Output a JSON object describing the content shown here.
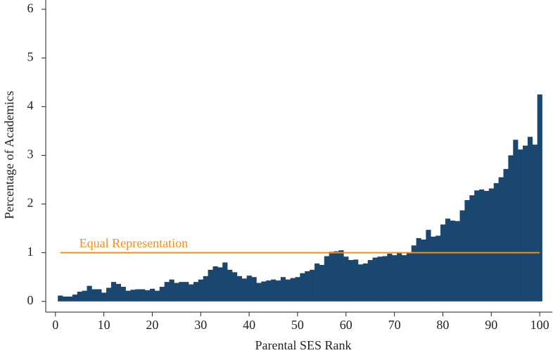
{
  "chart_data": {
    "type": "bar",
    "xlabel": "Parental SES Rank",
    "ylabel": "Percentage of Academics",
    "color": "#1a476f",
    "x": [
      1,
      2,
      3,
      4,
      5,
      6,
      7,
      8,
      9,
      10,
      11,
      12,
      13,
      14,
      15,
      16,
      17,
      18,
      19,
      20,
      21,
      22,
      23,
      24,
      25,
      26,
      27,
      28,
      29,
      30,
      31,
      32,
      33,
      34,
      35,
      36,
      37,
      38,
      39,
      40,
      41,
      42,
      43,
      44,
      45,
      46,
      47,
      48,
      49,
      50,
      51,
      52,
      53,
      54,
      55,
      56,
      57,
      58,
      59,
      60,
      61,
      62,
      63,
      64,
      65,
      66,
      67,
      68,
      69,
      70,
      71,
      72,
      73,
      74,
      75,
      76,
      77,
      78,
      79,
      80,
      81,
      82,
      83,
      84,
      85,
      86,
      87,
      88,
      89,
      90,
      91,
      92,
      93,
      94,
      95,
      96,
      97,
      98,
      99,
      100
    ],
    "values": [
      0.12,
      0.1,
      0.1,
      0.14,
      0.2,
      0.22,
      0.32,
      0.25,
      0.25,
      0.18,
      0.28,
      0.4,
      0.36,
      0.3,
      0.22,
      0.24,
      0.25,
      0.25,
      0.23,
      0.26,
      0.22,
      0.3,
      0.4,
      0.45,
      0.38,
      0.4,
      0.4,
      0.35,
      0.4,
      0.45,
      0.52,
      0.65,
      0.72,
      0.7,
      0.8,
      0.65,
      0.6,
      0.52,
      0.47,
      0.53,
      0.5,
      0.38,
      0.41,
      0.43,
      0.45,
      0.43,
      0.5,
      0.45,
      0.48,
      0.5,
      0.58,
      0.62,
      0.65,
      0.78,
      0.75,
      0.93,
      1.02,
      1.03,
      1.05,
      0.92,
      0.85,
      0.86,
      0.76,
      0.78,
      0.85,
      0.9,
      0.92,
      0.93,
      0.98,
      0.95,
      1.0,
      0.95,
      1.0,
      1.15,
      1.3,
      1.27,
      1.47,
      1.33,
      1.35,
      1.58,
      1.7,
      1.66,
      1.65,
      1.87,
      2.08,
      2.18,
      2.28,
      2.3,
      2.27,
      2.32,
      2.43,
      2.55,
      2.72,
      3.0,
      3.32,
      3.12,
      3.2,
      3.38,
      3.22,
      4.25
    ],
    "reference_line": {
      "value": 1,
      "label": "Equal Representation",
      "color": "#f28e1c"
    },
    "xlim": [
      -2,
      102.6
    ],
    "xticks": [
      0,
      10,
      20,
      30,
      40,
      50,
      60,
      70,
      80,
      90,
      100
    ],
    "ylim": [
      -0.22,
      6.19
    ],
    "yticks": [
      0,
      1,
      2,
      3,
      4,
      5,
      6
    ],
    "grid": false
  }
}
